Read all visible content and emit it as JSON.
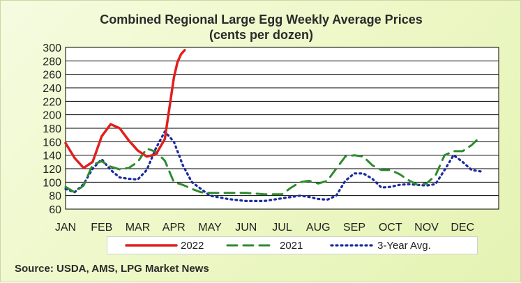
{
  "title_line1": "Combined Regional Large Egg Weekly Average Prices",
  "title_line2": "(cents per dozen)",
  "source": "Source: USDA, AMS, LPG  Market News",
  "chart_data": {
    "type": "line",
    "title": "Combined Regional Large Egg Weekly Average Prices",
    "subtitle": "(cents per dozen)",
    "xlabel": "",
    "ylabel": "",
    "categories": [
      "JAN",
      "FEB",
      "MAR",
      "APR",
      "MAY",
      "JUN",
      "JUL",
      "AUG",
      "SEP",
      "OCT",
      "NOV",
      "DEC"
    ],
    "ylim": [
      60,
      300
    ],
    "yticks": [
      60,
      80,
      100,
      120,
      140,
      160,
      180,
      200,
      220,
      240,
      260,
      280,
      300
    ],
    "grid": true,
    "legend_position": "bottom",
    "series": [
      {
        "name": "2022",
        "color": "#e02020",
        "style": "solid",
        "x": [
          0.0,
          0.25,
          0.5,
          0.75,
          1.0,
          1.25,
          1.5,
          1.75,
          2.0,
          2.25,
          2.5,
          2.75,
          3.0,
          3.1,
          3.2,
          3.3
        ],
        "y": [
          158,
          136,
          121,
          130,
          168,
          186,
          180,
          162,
          147,
          138,
          141,
          164,
          255,
          278,
          290,
          296
        ]
      },
      {
        "name": "2021",
        "color": "#2e8b2e",
        "style": "dashed",
        "x": [
          0.0,
          0.25,
          0.5,
          0.75,
          1.0,
          1.25,
          1.5,
          1.75,
          2.0,
          2.25,
          2.5,
          2.75,
          3.0,
          3.25,
          3.5,
          3.75,
          4.0,
          4.5,
          5.0,
          5.5,
          6.0,
          6.25,
          6.5,
          6.75,
          7.0,
          7.25,
          7.5,
          7.75,
          8.0,
          8.25,
          8.5,
          8.75,
          9.0,
          9.25,
          9.5,
          9.75,
          10.0,
          10.25,
          10.5,
          10.75,
          11.0,
          11.25,
          11.5
        ],
        "y": [
          93,
          85,
          95,
          126,
          131,
          123,
          119,
          121,
          130,
          150,
          145,
          132,
          100,
          96,
          90,
          85,
          84,
          84,
          84,
          82,
          82,
          92,
          100,
          102,
          98,
          102,
          120,
          138,
          140,
          138,
          125,
          118,
          118,
          112,
          103,
          96,
          98,
          110,
          140,
          146,
          146,
          155,
          168
        ]
      },
      {
        "name": "3-Year Avg.",
        "color": "#1a2aa0",
        "style": "dotted",
        "x": [
          0.0,
          0.25,
          0.5,
          0.75,
          1.0,
          1.25,
          1.5,
          1.75,
          2.0,
          2.25,
          2.5,
          2.75,
          3.0,
          3.25,
          3.5,
          3.75,
          4.0,
          4.5,
          5.0,
          5.5,
          6.0,
          6.25,
          6.5,
          6.75,
          7.0,
          7.25,
          7.5,
          7.75,
          8.0,
          8.25,
          8.5,
          8.75,
          9.0,
          9.25,
          9.5,
          9.75,
          10.0,
          10.25,
          10.5,
          10.75,
          11.0,
          11.25,
          11.5
        ],
        "y": [
          90,
          85,
          97,
          120,
          134,
          118,
          107,
          105,
          104,
          118,
          150,
          175,
          160,
          125,
          100,
          90,
          80,
          75,
          72,
          72,
          76,
          78,
          80,
          78,
          75,
          74,
          80,
          102,
          113,
          113,
          105,
          92,
          93,
          96,
          97,
          96,
          95,
          97,
          118,
          140,
          130,
          118,
          116
        ]
      }
    ]
  }
}
